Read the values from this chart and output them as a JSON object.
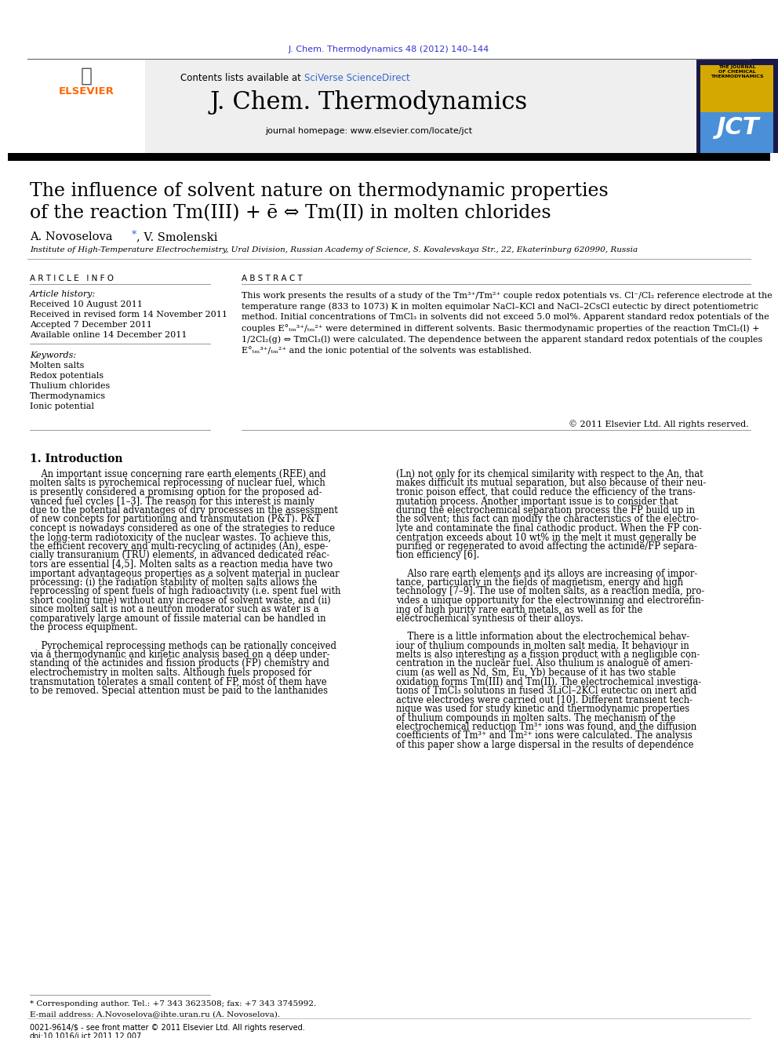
{
  "journal_ref": "J. Chem. Thermodynamics 48 (2012) 140–144",
  "journal_ref_color": "#3333cc",
  "header_bg": "#f0f0f0",
  "contents_text": "Contents lists available at ",
  "sciverse_text": "SciVerse ScienceDirect",
  "sciverse_color": "#3366cc",
  "journal_title": "J. Chem. Thermodynamics",
  "journal_homepage": "journal homepage: www.elsevier.com/locate/jct",
  "paper_title_line1": "The influence of solvent nature on thermodynamic properties",
  "paper_title_line2": "of the reaction Tm(III) + ē ⇔ Tm(II) in molten chlorides",
  "authors_plain": "A. Novoselova",
  "authors_rest": ", V. Smolenski",
  "affiliation": "Institute of High-Temperature Electrochemistry, Ural Division, Russian Academy of Science, S. Kovalevskaya Str., 22, Ekaterinburg 620990, Russia",
  "article_info_title": "A R T I C L E   I N F O",
  "article_history_label": "Article history:",
  "article_history": [
    "Received 10 August 2011",
    "Received in revised form 14 November 2011",
    "Accepted 7 December 2011",
    "Available online 14 December 2011"
  ],
  "keywords_label": "Keywords:",
  "keywords": [
    "Molten salts",
    "Redox potentials",
    "Thulium chlorides",
    "Thermodynamics",
    "Ionic potential"
  ],
  "abstract_title": "A B S T R A C T",
  "abstract_text": "This work presents the results of a study of the Tm³⁺/Tm²⁺ couple redox potentials vs. Cl⁻/Cl₂ reference electrode at the temperature range (833 to 1073) K in molten equimolar NaCl–KCl and NaCl–2CsCl eutectic by direct potentiometric method. Initial concentrations of TmCl₃ in solvents did not exceed 5.0 mol%. Apparent standard redox potentials of the couples E°ₜₘ³⁺/ₜₘ²⁺ were determined in different solvents. Basic thermodynamic properties of the reaction TmCl₂(l) + 1/2Cl₂(g) ⇔ TmCl₃(l) were calculated. The dependence between the apparent standard redox potentials of the couples E°ₜₘ³⁺/ₜₘ²⁺ and the ionic potential of the solvents was established.",
  "copyright": "© 2011 Elsevier Ltd. All rights reserved.",
  "intro_title": "1. Introduction",
  "footer_left": "0021-9614/$ - see front matter © 2011 Elsevier Ltd. All rights reserved.",
  "footer_doi": "doi:10.1016/j.jct.2011.12.007",
  "corresponding_note": "* Corresponding author. Tel.: +7 343 3623508; fax: +7 343 3745992.",
  "email_note": "E-mail address: A.Novoselova@ihte.uran.ru (A. Novoselova).",
  "elsevier_color": "#FF6600",
  "bg_color": "#ffffff",
  "text_color": "#000000",
  "link_color": "#3366cc",
  "jct_yellow": "#d4a800",
  "jct_blue": "#4a90d9",
  "jct_dark": "#1a1a4a"
}
